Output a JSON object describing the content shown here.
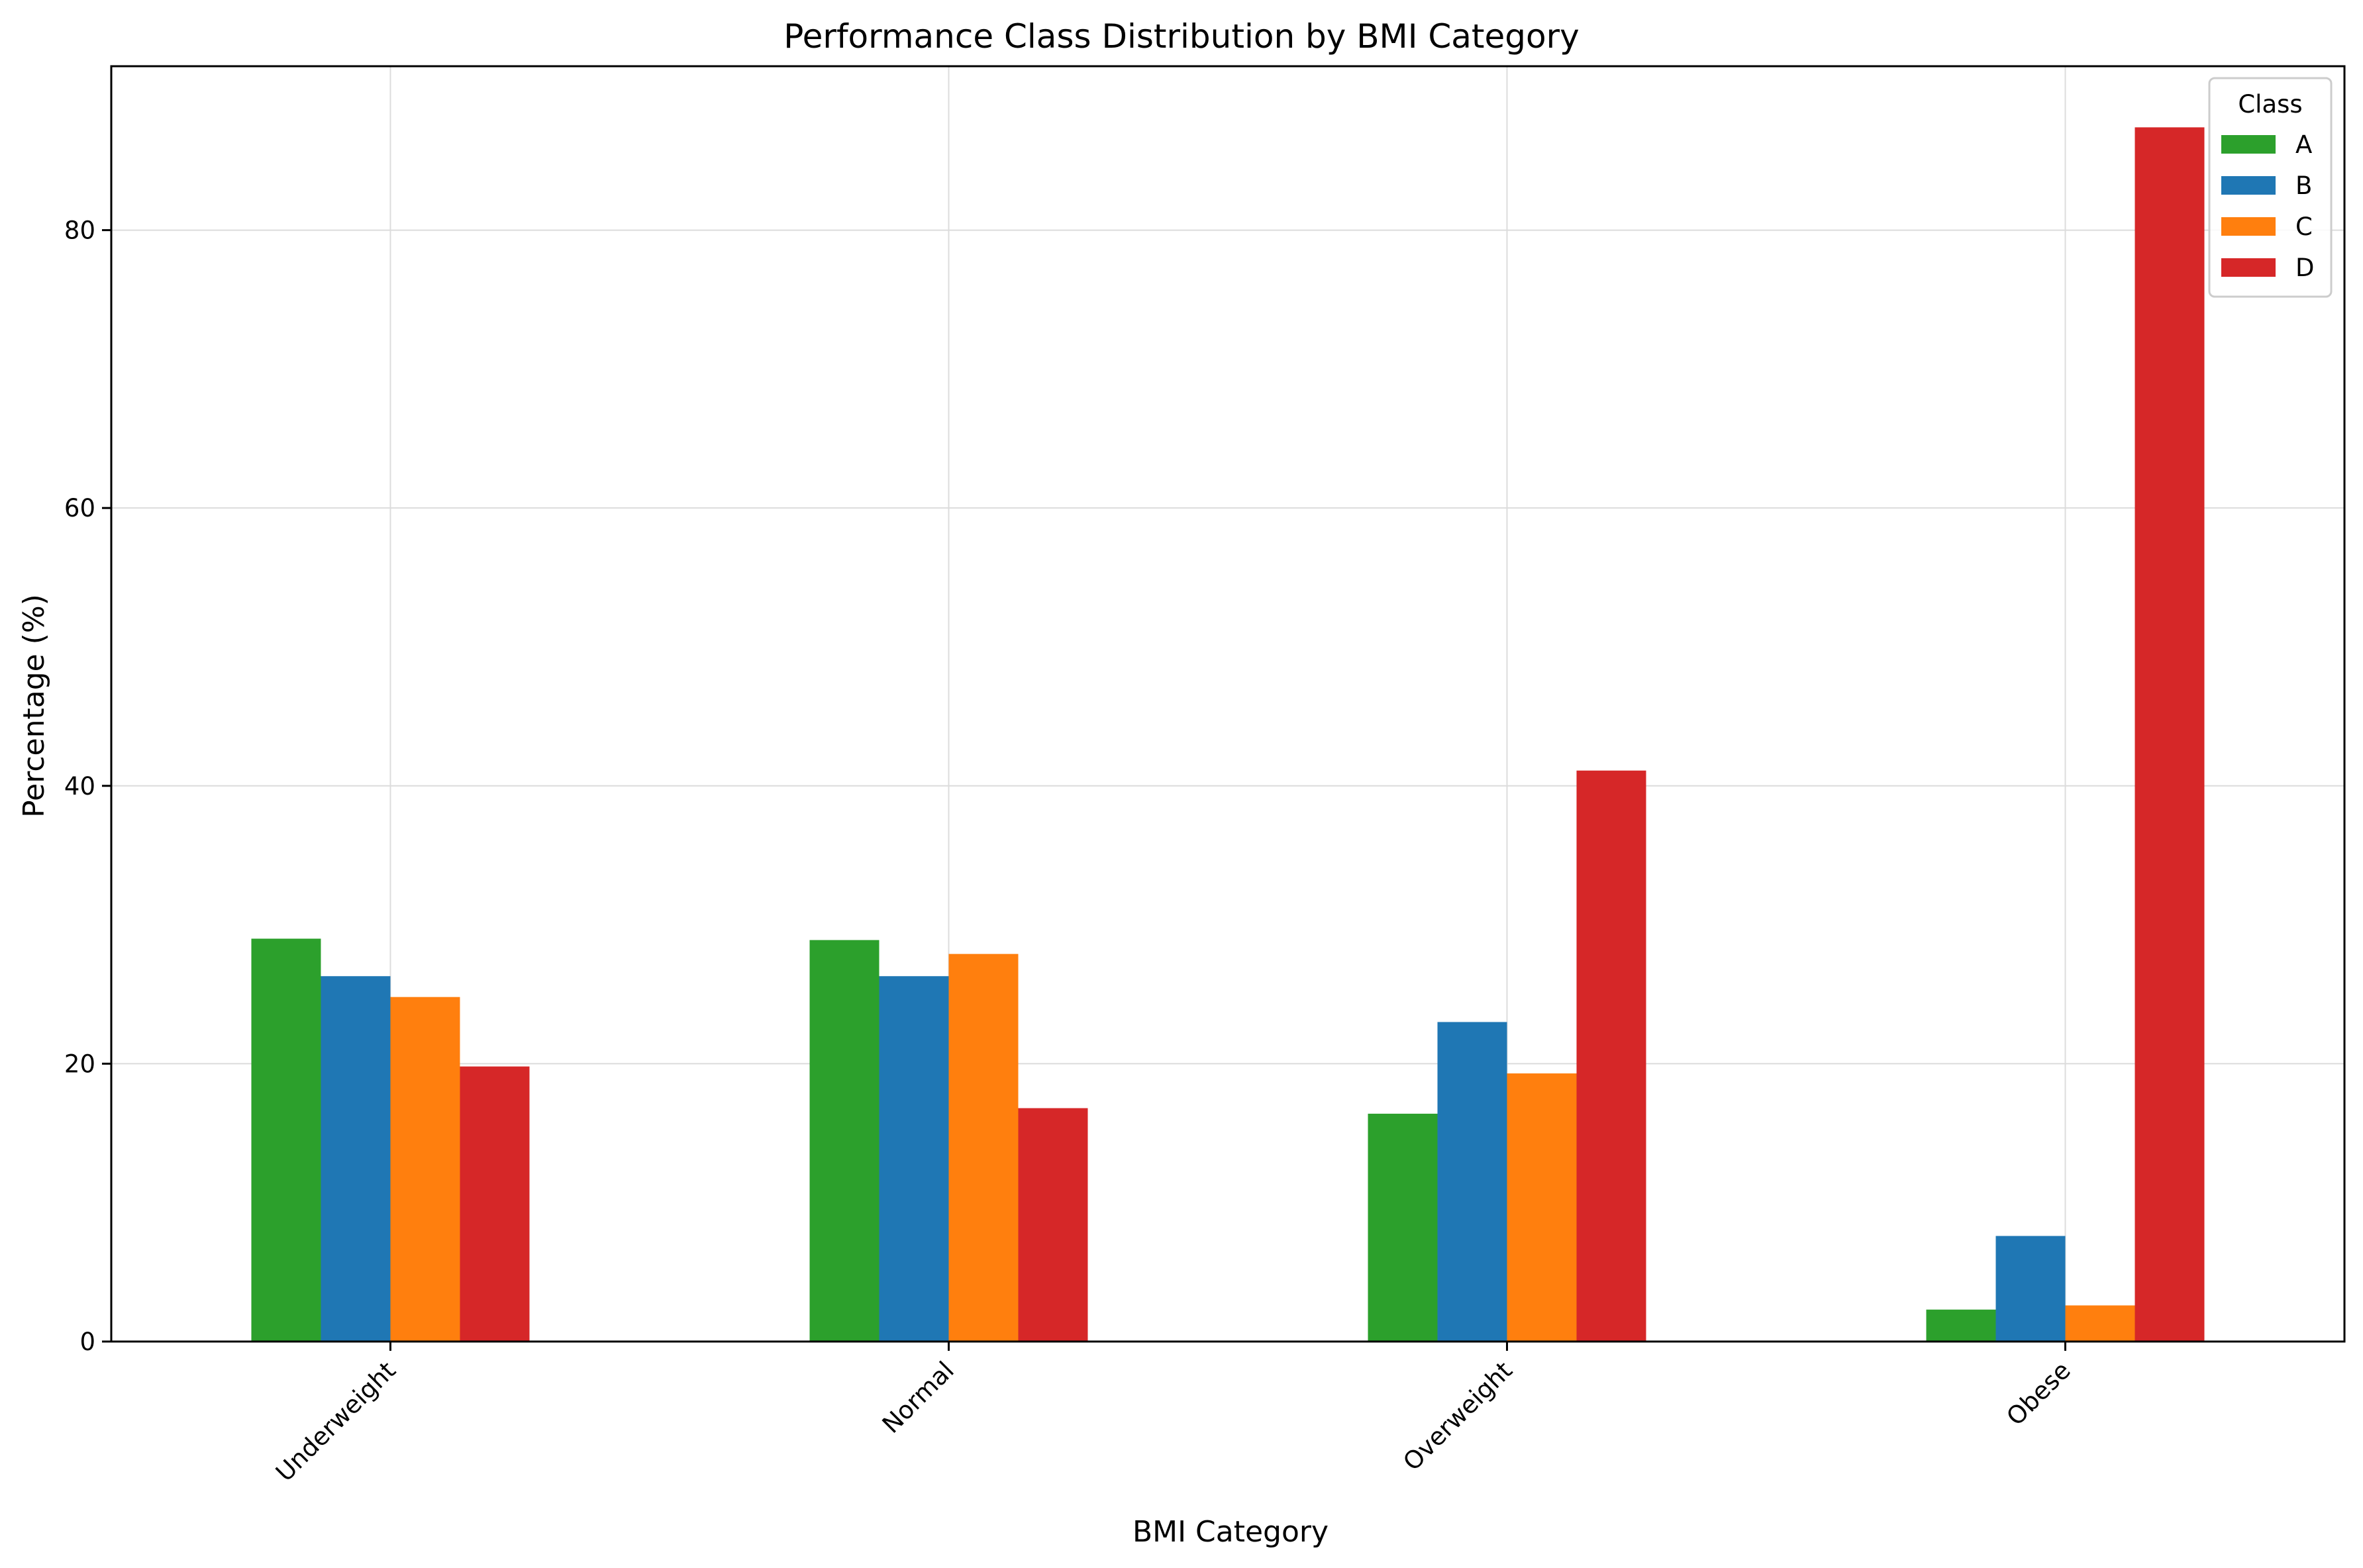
{
  "chart_data": {
    "type": "bar",
    "title": "Performance Class Distribution by BMI Category",
    "xlabel": "BMI Category",
    "ylabel": "Percentage (%)",
    "categories": [
      "Underweight",
      "Normal",
      "Overweight",
      "Obese"
    ],
    "series": [
      {
        "name": "A",
        "color": "#2ca02c",
        "values": [
          29.0,
          28.9,
          16.4,
          2.3
        ]
      },
      {
        "name": "B",
        "color": "#1f77b4",
        "values": [
          26.3,
          26.3,
          23.0,
          7.6
        ]
      },
      {
        "name": "C",
        "color": "#ff7f0e",
        "values": [
          24.8,
          27.9,
          19.3,
          2.6
        ]
      },
      {
        "name": "D",
        "color": "#d62728",
        "values": [
          19.8,
          16.8,
          41.1,
          87.4
        ]
      }
    ],
    "ylim": [
      0,
      91.8
    ],
    "yticks": [
      0,
      20,
      40,
      60,
      80
    ],
    "grid": true,
    "legend": {
      "title": "Class",
      "placement": "top-right"
    }
  }
}
